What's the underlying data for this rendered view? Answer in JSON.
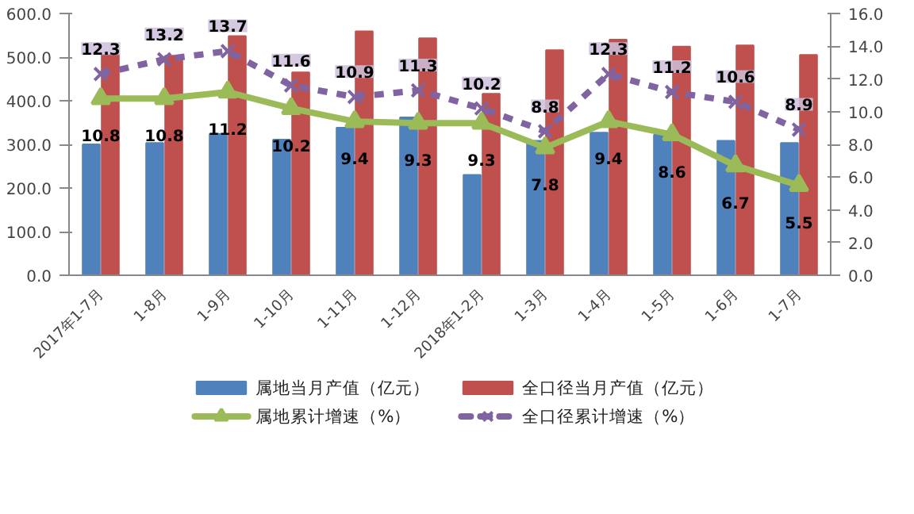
{
  "chart_data": {
    "type": "bar",
    "categories": [
      "2017年1-7月",
      "1-8月",
      "1-9月",
      "1-10月",
      "1-11月",
      "1-12月",
      "2018年1-2月",
      "1-3月",
      "1-4月",
      "1-5月",
      "1-6月",
      "1-7月"
    ],
    "series": [
      {
        "name": "属地当月产值（亿元）",
        "color": "#4f81bd",
        "values": [
          300,
          303,
          324,
          311,
          338,
          362,
          230,
          308,
          327,
          322,
          308,
          303
        ]
      },
      {
        "name": "全口径当月产值（亿元）",
        "color": "#c0504d",
        "values": [
          505,
          503,
          548,
          465,
          559,
          543,
          416,
          516,
          540,
          524,
          527,
          505
        ]
      },
      {
        "name": "属地累计增速（%）",
        "type": "line",
        "axis": "y2",
        "color": "#9bbb59",
        "marker": "triangle",
        "line_style": "solid",
        "data_labels": true,
        "values": [
          10.8,
          10.8,
          11.2,
          10.2,
          9.4,
          9.3,
          9.3,
          7.8,
          9.4,
          8.6,
          6.7,
          5.5
        ]
      },
      {
        "name": "全口径累计增速（%）",
        "type": "line",
        "axis": "y2",
        "color": "#8064a2",
        "marker": "cross",
        "line_style": "dashed",
        "data_labels": true,
        "values": [
          12.3,
          13.2,
          13.7,
          11.6,
          10.9,
          11.3,
          10.2,
          8.8,
          12.3,
          11.2,
          10.6,
          8.9
        ]
      }
    ],
    "ylim": [
      0,
      600
    ],
    "yticks": [
      {
        "value": 0,
        "label": "0.0"
      },
      {
        "value": 100,
        "label": "100.0"
      },
      {
        "value": 200,
        "label": "200.0"
      },
      {
        "value": 300,
        "label": "300.0"
      },
      {
        "value": 400,
        "label": "400.0"
      },
      {
        "value": 500,
        "label": "500.0"
      },
      {
        "value": 600,
        "label": "600.0"
      }
    ],
    "y2lim": [
      0,
      16
    ],
    "y2ticks": [
      {
        "value": 0,
        "label": "0.0"
      },
      {
        "value": 2,
        "label": "2.0"
      },
      {
        "value": 4,
        "label": "4.0"
      },
      {
        "value": 6,
        "label": "6.0"
      },
      {
        "value": 8,
        "label": "8.0"
      },
      {
        "value": 10,
        "label": "10.0"
      },
      {
        "value": 12,
        "label": "12.0"
      },
      {
        "value": 14,
        "label": "14.0"
      },
      {
        "value": 16,
        "label": "16.0"
      }
    ],
    "grid": false,
    "legend": "bottom"
  }
}
